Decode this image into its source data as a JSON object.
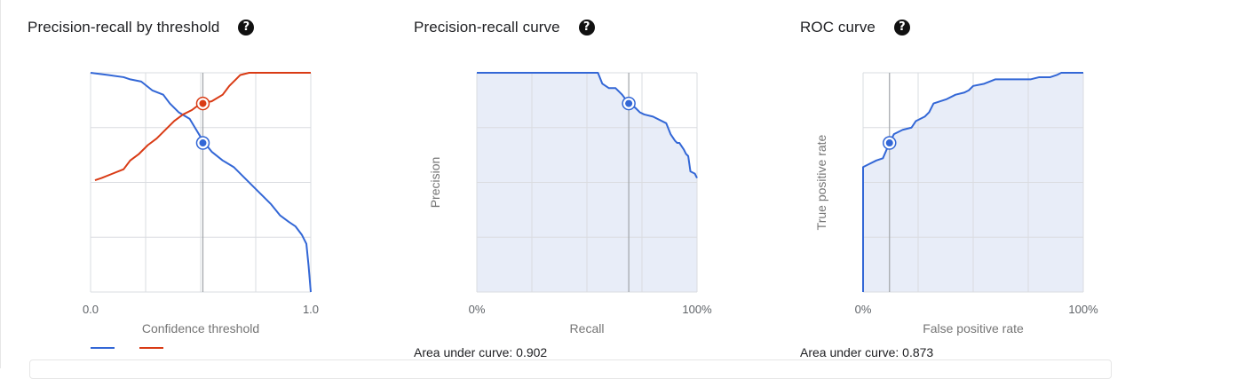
{
  "colors": {
    "blue": "#3367d6",
    "red": "#d93b15",
    "grid": "#dadce0",
    "fill": "#e8edf8"
  },
  "icons": {
    "help": "question-circle-icon"
  },
  "panels": [
    {
      "title": "Precision-recall by threshold",
      "help_glyph": "?"
    },
    {
      "title": "Precision-recall curve",
      "help_glyph": "?",
      "auc": "Area under curve: 0.902"
    },
    {
      "title": "ROC curve",
      "help_glyph": "?",
      "auc": "Area under curve: 0.873"
    }
  ],
  "chart_data": [
    {
      "type": "line",
      "title": "Precision-recall by threshold",
      "xlabel": "Confidence threshold",
      "ylabel": "",
      "x_tick_labels": [
        "0.0",
        "1.0"
      ],
      "xlim": [
        0,
        1
      ],
      "ylim": [
        0,
        1
      ],
      "grid": true,
      "threshold_marker": 0.51,
      "series": [
        {
          "color": "#3367d6",
          "x": [
            0.0,
            0.08,
            0.15,
            0.18,
            0.23,
            0.28,
            0.33,
            0.36,
            0.4,
            0.45,
            0.48,
            0.51,
            0.55,
            0.6,
            0.65,
            0.7,
            0.75,
            0.78,
            0.82,
            0.86,
            0.9,
            0.93,
            0.96,
            0.98,
            0.99,
            1.0
          ],
          "y": [
            1.0,
            0.99,
            0.98,
            0.97,
            0.96,
            0.92,
            0.9,
            0.86,
            0.82,
            0.79,
            0.74,
            0.69,
            0.64,
            0.6,
            0.57,
            0.52,
            0.47,
            0.44,
            0.4,
            0.35,
            0.32,
            0.3,
            0.26,
            0.22,
            0.12,
            0.0
          ]
        },
        {
          "color": "#d93b15",
          "x": [
            0.02,
            0.05,
            0.1,
            0.15,
            0.18,
            0.22,
            0.26,
            0.3,
            0.34,
            0.38,
            0.42,
            0.46,
            0.5,
            0.55,
            0.6,
            0.63,
            0.66,
            0.68,
            0.72,
            0.8,
            0.9,
            1.0
          ],
          "y": [
            0.51,
            0.52,
            0.54,
            0.56,
            0.6,
            0.63,
            0.67,
            0.7,
            0.74,
            0.78,
            0.81,
            0.83,
            0.86,
            0.87,
            0.9,
            0.94,
            0.97,
            0.99,
            1.0,
            1.0,
            1.0,
            1.0
          ]
        }
      ],
      "markers": [
        {
          "x": 0.51,
          "y": 0.86,
          "color": "#d93b15"
        },
        {
          "x": 0.51,
          "y": 0.68,
          "color": "#3367d6"
        }
      ],
      "legend": {
        "placement": "bottom-left"
      }
    },
    {
      "type": "area",
      "title": "Precision-recall curve",
      "xlabel": "Recall",
      "ylabel": "Precision",
      "x_tick_labels": [
        "0%",
        "100%"
      ],
      "xlim": [
        0,
        1
      ],
      "ylim": [
        0,
        1
      ],
      "grid": true,
      "cursor_x": 0.69,
      "series": [
        {
          "color": "#3367d6",
          "x": [
            0.0,
            0.5,
            0.55,
            0.57,
            0.6,
            0.63,
            0.66,
            0.69,
            0.72,
            0.74,
            0.76,
            0.8,
            0.86,
            0.88,
            0.9,
            0.91,
            0.92,
            0.94,
            0.95,
            0.96,
            0.97,
            0.99,
            1.0
          ],
          "y": [
            1.0,
            1.0,
            1.0,
            0.95,
            0.93,
            0.93,
            0.9,
            0.86,
            0.84,
            0.82,
            0.81,
            0.8,
            0.77,
            0.72,
            0.69,
            0.68,
            0.68,
            0.65,
            0.63,
            0.62,
            0.55,
            0.54,
            0.52
          ]
        }
      ],
      "markers": [
        {
          "x": 0.69,
          "y": 0.86,
          "color": "#3367d6"
        }
      ],
      "auc": 0.902
    },
    {
      "type": "area",
      "title": "ROC curve",
      "xlabel": "False positive rate",
      "ylabel": "True positive rate",
      "x_tick_labels": [
        "0%",
        "100%"
      ],
      "xlim": [
        0,
        1
      ],
      "ylim": [
        0,
        1
      ],
      "grid": true,
      "cursor_x": 0.12,
      "series": [
        {
          "color": "#3367d6",
          "x": [
            0.0,
            0.0,
            0.02,
            0.06,
            0.09,
            0.12,
            0.14,
            0.18,
            0.22,
            0.24,
            0.28,
            0.3,
            0.32,
            0.38,
            0.42,
            0.46,
            0.48,
            0.5,
            0.55,
            0.6,
            0.7,
            0.76,
            0.8,
            0.85,
            0.88,
            0.9,
            1.0
          ],
          "y": [
            0.0,
            0.57,
            0.58,
            0.6,
            0.61,
            0.68,
            0.72,
            0.74,
            0.75,
            0.78,
            0.8,
            0.82,
            0.86,
            0.88,
            0.9,
            0.91,
            0.92,
            0.94,
            0.95,
            0.97,
            0.97,
            0.97,
            0.98,
            0.98,
            0.99,
            1.0,
            1.0
          ]
        }
      ],
      "markers": [
        {
          "x": 0.12,
          "y": 0.68,
          "color": "#3367d6"
        }
      ],
      "auc": 0.873
    }
  ]
}
